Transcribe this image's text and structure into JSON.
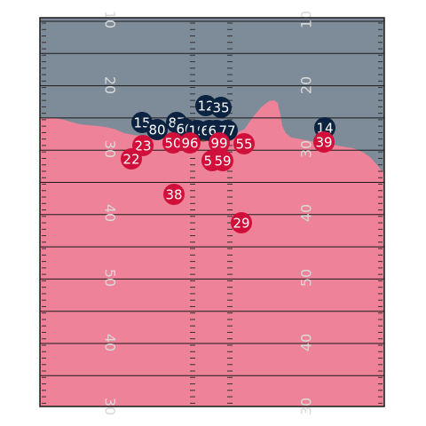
{
  "field": {
    "colors": {
      "field_top": "#7e8b98",
      "field_bottom": "#ee8298",
      "lines": "#1a1a1a",
      "hash": "#333333",
      "yard_numbers": "#d8d8d8",
      "ball": "#6b4226"
    },
    "yard_numbers_left": [
      "10",
      "20",
      "30",
      "40",
      "50",
      "40",
      "30"
    ],
    "yard_numbers_right": [
      "10",
      "20",
      "30",
      "40",
      "50",
      "40",
      "30"
    ]
  },
  "teams": {
    "offense": {
      "color": "#0b2240",
      "jerseys": [
        "12",
        "35",
        "15",
        "87",
        "80",
        "66",
        "19",
        "60",
        "62",
        "77",
        "14"
      ]
    },
    "defense": {
      "color": "#d0103a",
      "jerseys": [
        "23",
        "50",
        "96",
        "99",
        "55",
        "39",
        "22",
        "54",
        "59",
        "38",
        "29"
      ]
    }
  }
}
